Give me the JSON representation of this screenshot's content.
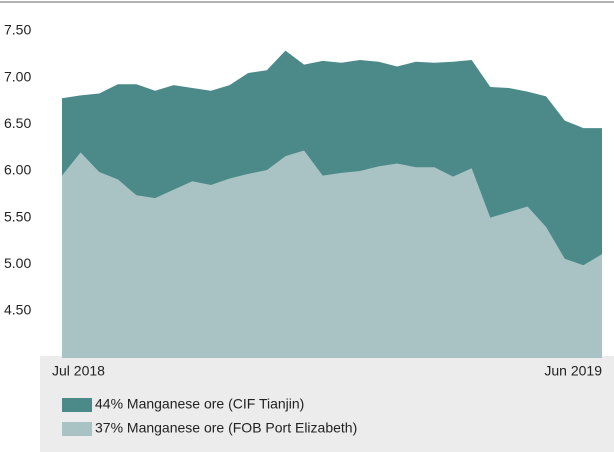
{
  "chart_data": {
    "type": "area",
    "categories": [
      "Jul 2018",
      null,
      null,
      null,
      null,
      null,
      null,
      null,
      null,
      null,
      null,
      null,
      null,
      null,
      null,
      null,
      null,
      null,
      null,
      null,
      null,
      null,
      null,
      null,
      null,
      null,
      null,
      null,
      null,
      "Jun 2019"
    ],
    "series": [
      {
        "name": "44% Manganese ore (CIF Tianjin)",
        "color": "#4b8a89",
        "values": [
          6.78,
          6.81,
          6.83,
          6.93,
          6.93,
          6.86,
          6.92,
          6.89,
          6.86,
          6.92,
          7.05,
          7.08,
          7.29,
          7.14,
          7.18,
          7.16,
          7.19,
          7.17,
          7.12,
          7.17,
          7.16,
          7.17,
          7.19,
          6.9,
          6.89,
          6.85,
          6.8,
          6.54,
          6.46,
          6.46
        ]
      },
      {
        "name": "37% Manganese ore (FOB Port Elizabeth)",
        "color": "#a9c3c5",
        "values": [
          5.95,
          6.2,
          5.99,
          5.91,
          5.74,
          5.71,
          5.8,
          5.89,
          5.85,
          5.92,
          5.97,
          6.01,
          6.16,
          6.22,
          5.95,
          5.98,
          6.0,
          6.05,
          6.08,
          6.04,
          6.04,
          5.94,
          6.03,
          5.5,
          5.56,
          5.62,
          5.4,
          5.06,
          4.99,
          5.11
        ]
      }
    ],
    "ylim": [
      4.0,
      7.8
    ],
    "yticks": [
      {
        "value": 4.5,
        "label": "4.50"
      },
      {
        "value": 5,
        "label": "5.00"
      },
      {
        "value": 5.5,
        "label": "5.50"
      },
      {
        "value": 6,
        "label": "6.00"
      },
      {
        "value": 6.5,
        "label": "6.50"
      },
      {
        "value": 7,
        "label": "7.00"
      },
      {
        "value": 7.5,
        "label": "7.50"
      }
    ],
    "grid": false
  }
}
